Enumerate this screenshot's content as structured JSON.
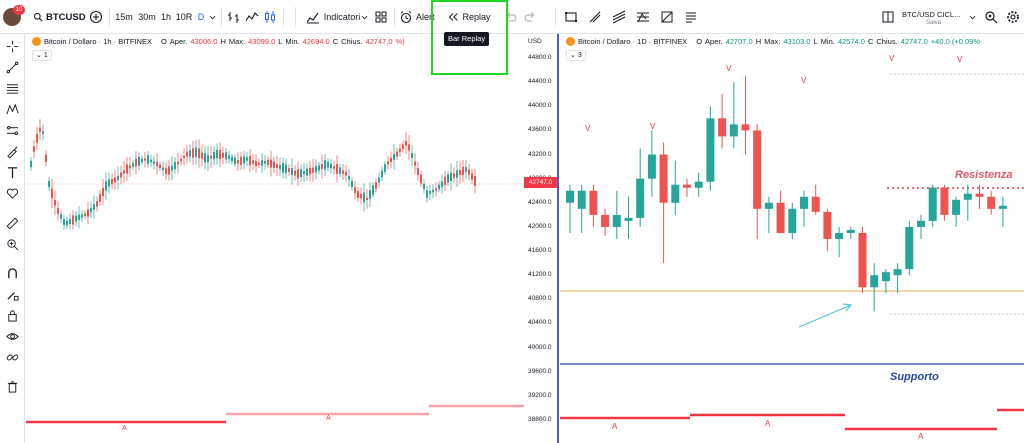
{
  "toolbar": {
    "avatar_badge": "10",
    "symbol": "BTCUSD",
    "intervals": [
      "15m",
      "30m",
      "1h",
      "10R",
      "D"
    ],
    "indicators_label": "Indicatori",
    "alert_label": "Alert",
    "replay_label": "Replay",
    "replay_tooltip": "Bar Replay",
    "layout_name": "BTC/USD CICL...",
    "layout_status": "Salva"
  },
  "left_pane": {
    "title": "Bitcoin / Dollaro · 1h · BITFINEX",
    "ohlc": {
      "open_label": "O",
      "open_key": "Aper.",
      "open": "43006.0",
      "high_key": "H",
      "high_label": "Max.",
      "high": "43099.0",
      "low_key": "L",
      "low_label": "Min.",
      "low": "42694.0",
      "close_key": "C",
      "close_label": "Chius.",
      "close": "42747.0",
      "change_pct": "%)"
    },
    "study_count": "1",
    "marker_label": "A"
  },
  "right_pane": {
    "title": "Bitcoin / Dollaro · 1D · BITFINEX",
    "ohlc": {
      "open_label": "O",
      "open_key": "Aper.",
      "open": "42707.0",
      "high_key": "H",
      "high_label": "Max.",
      "high": "43103.0",
      "low_key": "L",
      "low_label": "Min.",
      "low": "42574.0",
      "close_key": "C",
      "close_label": "Chius.",
      "close": "42747.0",
      "change": "+40.0 (+0.09%"
    },
    "study_count": "3",
    "marker_v": "V",
    "marker_a": "A",
    "resistance_label": "Resistenza",
    "support_label": "Supporto"
  },
  "price_axis": {
    "currency": "USD",
    "ticks": [
      "44800.0",
      "44400.0",
      "44000.0",
      "43600.0",
      "43200.0",
      "42800.0",
      "42400.0",
      "42000.0",
      "41600.0",
      "41200.0",
      "40800.0",
      "40400.0",
      "40000.0",
      "39600.0",
      "39200.0",
      "38800.0"
    ],
    "last_price": "42747.0"
  },
  "colors": {
    "up": "#26a69a",
    "down": "#ef5350",
    "accent": "#2962ff",
    "resistance": "#e55a6b",
    "support": "#2a46a8",
    "support_line": "#f0c26a",
    "arrow": "#5bc0de",
    "highlight": "#1fd81f"
  },
  "chart_data": [
    {
      "type": "candlestick",
      "title": "Bitcoin / Dollaro · 1h · BITFINEX",
      "ylim": [
        38800,
        44800
      ]
    },
    {
      "type": "candlestick",
      "title": "Bitcoin / Dollaro · 1D · BITFINEX",
      "ylim": [
        38800,
        44800
      ],
      "candles": [
        {
          "o": 42400,
          "h": 42700,
          "l": 41900,
          "c": 42600
        },
        {
          "o": 42300,
          "h": 42700,
          "l": 41900,
          "c": 42600
        },
        {
          "o": 42600,
          "h": 42700,
          "l": 42000,
          "c": 42200
        },
        {
          "o": 42200,
          "h": 42300,
          "l": 41850,
          "c": 42000
        },
        {
          "o": 42000,
          "h": 42600,
          "l": 41800,
          "c": 42200
        },
        {
          "o": 42100,
          "h": 42500,
          "l": 41800,
          "c": 42150
        },
        {
          "o": 42150,
          "h": 43300,
          "l": 42000,
          "c": 42800
        },
        {
          "o": 42800,
          "h": 43600,
          "l": 42500,
          "c": 43200
        },
        {
          "o": 43200,
          "h": 43400,
          "l": 41400,
          "c": 42400
        },
        {
          "o": 42400,
          "h": 43100,
          "l": 42200,
          "c": 42700
        },
        {
          "o": 42700,
          "h": 42800,
          "l": 42500,
          "c": 42650
        },
        {
          "o": 42650,
          "h": 42900,
          "l": 42500,
          "c": 42750
        },
        {
          "o": 42750,
          "h": 44000,
          "l": 42600,
          "c": 43800
        },
        {
          "o": 43800,
          "h": 44200,
          "l": 43300,
          "c": 43500
        },
        {
          "o": 43500,
          "h": 44400,
          "l": 43300,
          "c": 43700
        },
        {
          "o": 43700,
          "h": 44500,
          "l": 43200,
          "c": 43600
        },
        {
          "o": 43600,
          "h": 43700,
          "l": 41800,
          "c": 42300
        },
        {
          "o": 42300,
          "h": 42500,
          "l": 41900,
          "c": 42400
        },
        {
          "o": 42400,
          "h": 42600,
          "l": 41900,
          "c": 41900
        },
        {
          "o": 41900,
          "h": 42400,
          "l": 41800,
          "c": 42300
        },
        {
          "o": 42300,
          "h": 42600,
          "l": 42000,
          "c": 42500
        },
        {
          "o": 42500,
          "h": 42700,
          "l": 42200,
          "c": 42250
        },
        {
          "o": 42250,
          "h": 42300,
          "l": 41600,
          "c": 41800
        },
        {
          "o": 41800,
          "h": 42000,
          "l": 41500,
          "c": 41900
        },
        {
          "o": 41900,
          "h": 42000,
          "l": 41800,
          "c": 41950
        },
        {
          "o": 41900,
          "h": 42000,
          "l": 40900,
          "c": 41000
        },
        {
          "o": 41000,
          "h": 41400,
          "l": 40600,
          "c": 41200
        },
        {
          "o": 41100,
          "h": 41300,
          "l": 40900,
          "c": 41250
        },
        {
          "o": 41200,
          "h": 41400,
          "l": 40900,
          "c": 41300
        },
        {
          "o": 41300,
          "h": 42100,
          "l": 41200,
          "c": 42000
        },
        {
          "o": 42000,
          "h": 42200,
          "l": 41800,
          "c": 42100
        },
        {
          "o": 42100,
          "h": 42700,
          "l": 42000,
          "c": 42650
        },
        {
          "o": 42650,
          "h": 42700,
          "l": 42100,
          "c": 42200
        },
        {
          "o": 42200,
          "h": 42500,
          "l": 42000,
          "c": 42450
        },
        {
          "o": 42450,
          "h": 42700,
          "l": 42100,
          "c": 42550
        },
        {
          "o": 42550,
          "h": 42700,
          "l": 42300,
          "c": 42500
        },
        {
          "o": 42500,
          "h": 42600,
          "l": 42200,
          "c": 42300
        },
        {
          "o": 42300,
          "h": 42500,
          "l": 42000,
          "c": 42350
        }
      ]
    }
  ]
}
